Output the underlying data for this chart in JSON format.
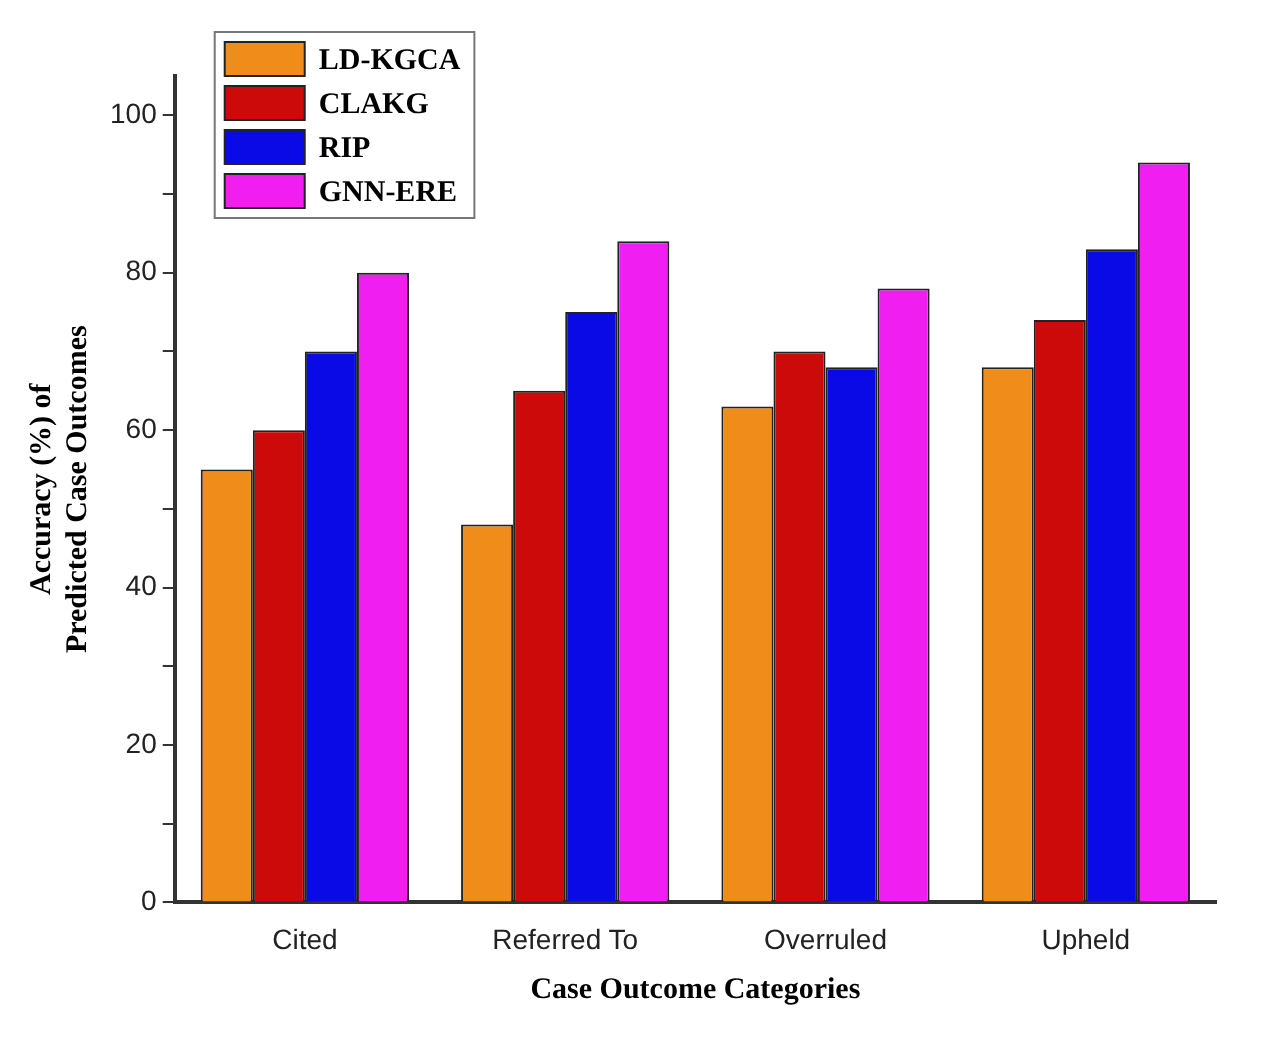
{
  "chart_data": {
    "type": "bar",
    "xlabel": "Case Outcome Categories",
    "ylabel": "Accuracy (%) of\nPredicted Case Outcomes",
    "categories": [
      "Cited",
      "Referred To",
      "Overruled",
      "Upheld"
    ],
    "series": [
      {
        "name": "LD-KGCA",
        "color": "#f08c1a",
        "values": [
          55,
          48,
          63,
          68
        ]
      },
      {
        "name": "CLAKG",
        "color": "#cc0a0a",
        "values": [
          60,
          65,
          70,
          74
        ]
      },
      {
        "name": "RIP",
        "color": "#0a0ae6",
        "values": [
          70,
          75,
          68,
          83
        ]
      },
      {
        "name": "GNN-ERE",
        "color": "#f01ef0",
        "values": [
          80,
          84,
          78,
          94
        ]
      }
    ],
    "ylim": [
      0,
      105
    ],
    "yticks": [
      0,
      {
        "value": 10,
        "label": null
      },
      20,
      {
        "value": 30,
        "label": null
      },
      40,
      {
        "value": 50,
        "label": null
      },
      60,
      {
        "value": 70,
        "label": null
      },
      80,
      {
        "value": 90,
        "label": null
      },
      100
    ],
    "grid": false,
    "legend": "top left"
  }
}
